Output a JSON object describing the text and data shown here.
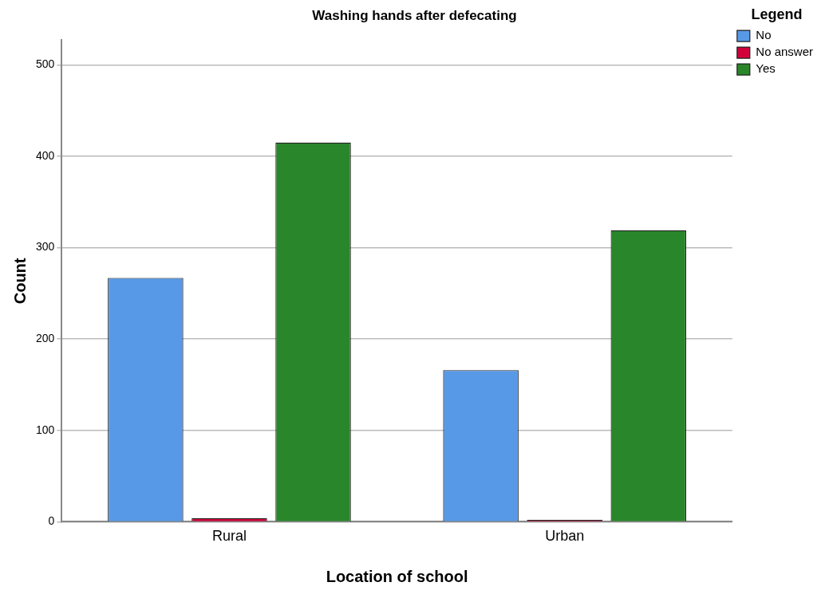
{
  "chart_data": {
    "type": "bar",
    "title": "Washing hands after defecating",
    "xlabel": "Location of school",
    "ylabel": "Count",
    "legend_title": "Legend",
    "categories": [
      "Rural",
      "Urban"
    ],
    "series": [
      {
        "name": "No",
        "color": "#5799e6",
        "values": [
          267,
          166
        ]
      },
      {
        "name": "No answer",
        "color": "#d2003a",
        "values": [
          4,
          2
        ]
      },
      {
        "name": "Yes",
        "color": "#2a862a",
        "values": [
          415,
          319
        ]
      }
    ],
    "ylim": [
      0,
      527
    ],
    "yticks": [
      0,
      100,
      200,
      300,
      400,
      500
    ],
    "grid": "y",
    "legend": "top right"
  }
}
